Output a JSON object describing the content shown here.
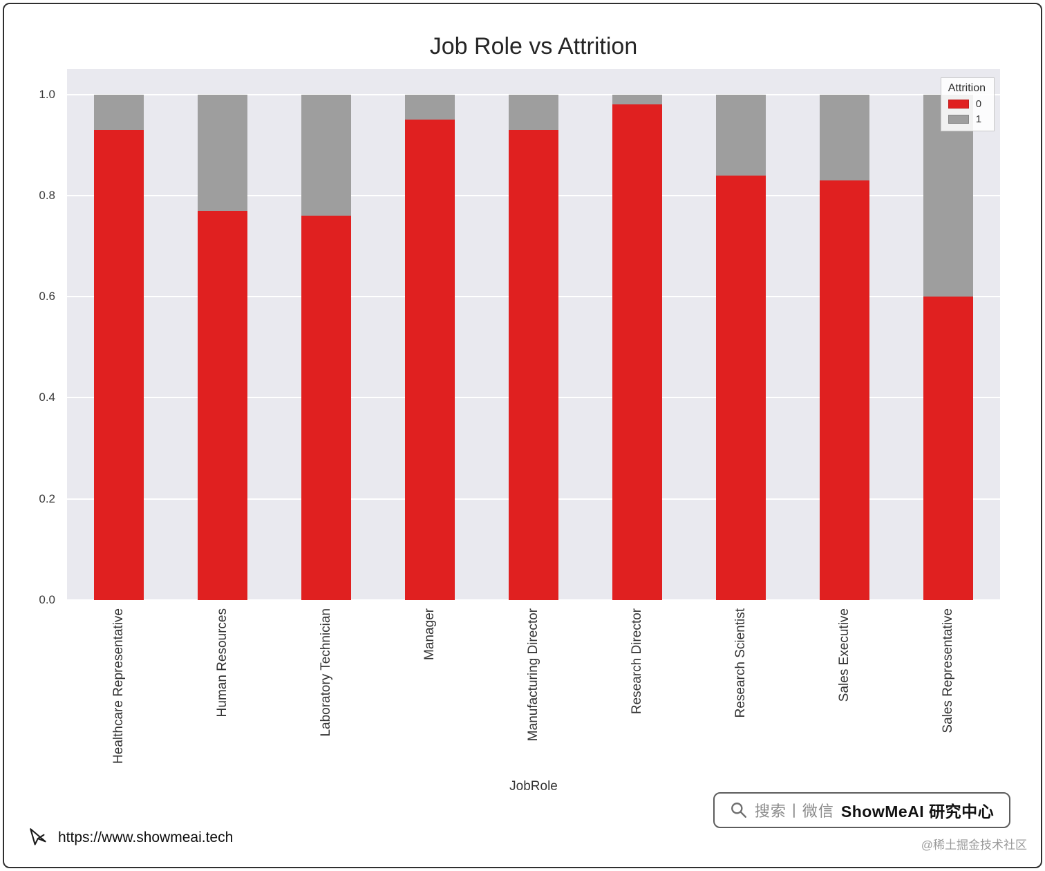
{
  "chart_data": {
    "type": "bar",
    "stacked": true,
    "title": "Job Role vs Attrition",
    "xlabel": "JobRole",
    "ylabel": "",
    "ylim": [
      0,
      1.05
    ],
    "yticks": [
      0.0,
      0.2,
      0.4,
      0.6,
      0.8,
      1.0
    ],
    "grid": true,
    "plot_bg": "#e9e9ef",
    "categories": [
      "Healthcare Representative",
      "Human Resources",
      "Laboratory Technician",
      "Manager",
      "Manufacturing Director",
      "Research Director",
      "Research Scientist",
      "Sales Executive",
      "Sales Representative"
    ],
    "series": [
      {
        "name": "0",
        "color": "#e02020",
        "values": [
          0.93,
          0.77,
          0.76,
          0.95,
          0.93,
          0.98,
          0.84,
          0.83,
          0.6
        ]
      },
      {
        "name": "1",
        "color": "#9e9e9e",
        "values": [
          0.07,
          0.23,
          0.24,
          0.05,
          0.07,
          0.02,
          0.16,
          0.17,
          0.4
        ]
      }
    ],
    "legend": {
      "title": "Attrition",
      "position": "upper right"
    }
  },
  "watermark": {
    "search_label": "搜索丨微信",
    "brand": "ShowMeAI 研究中心",
    "community": "@稀土掘金技术社区"
  },
  "footer": {
    "url": "https://www.showmeai.tech"
  }
}
